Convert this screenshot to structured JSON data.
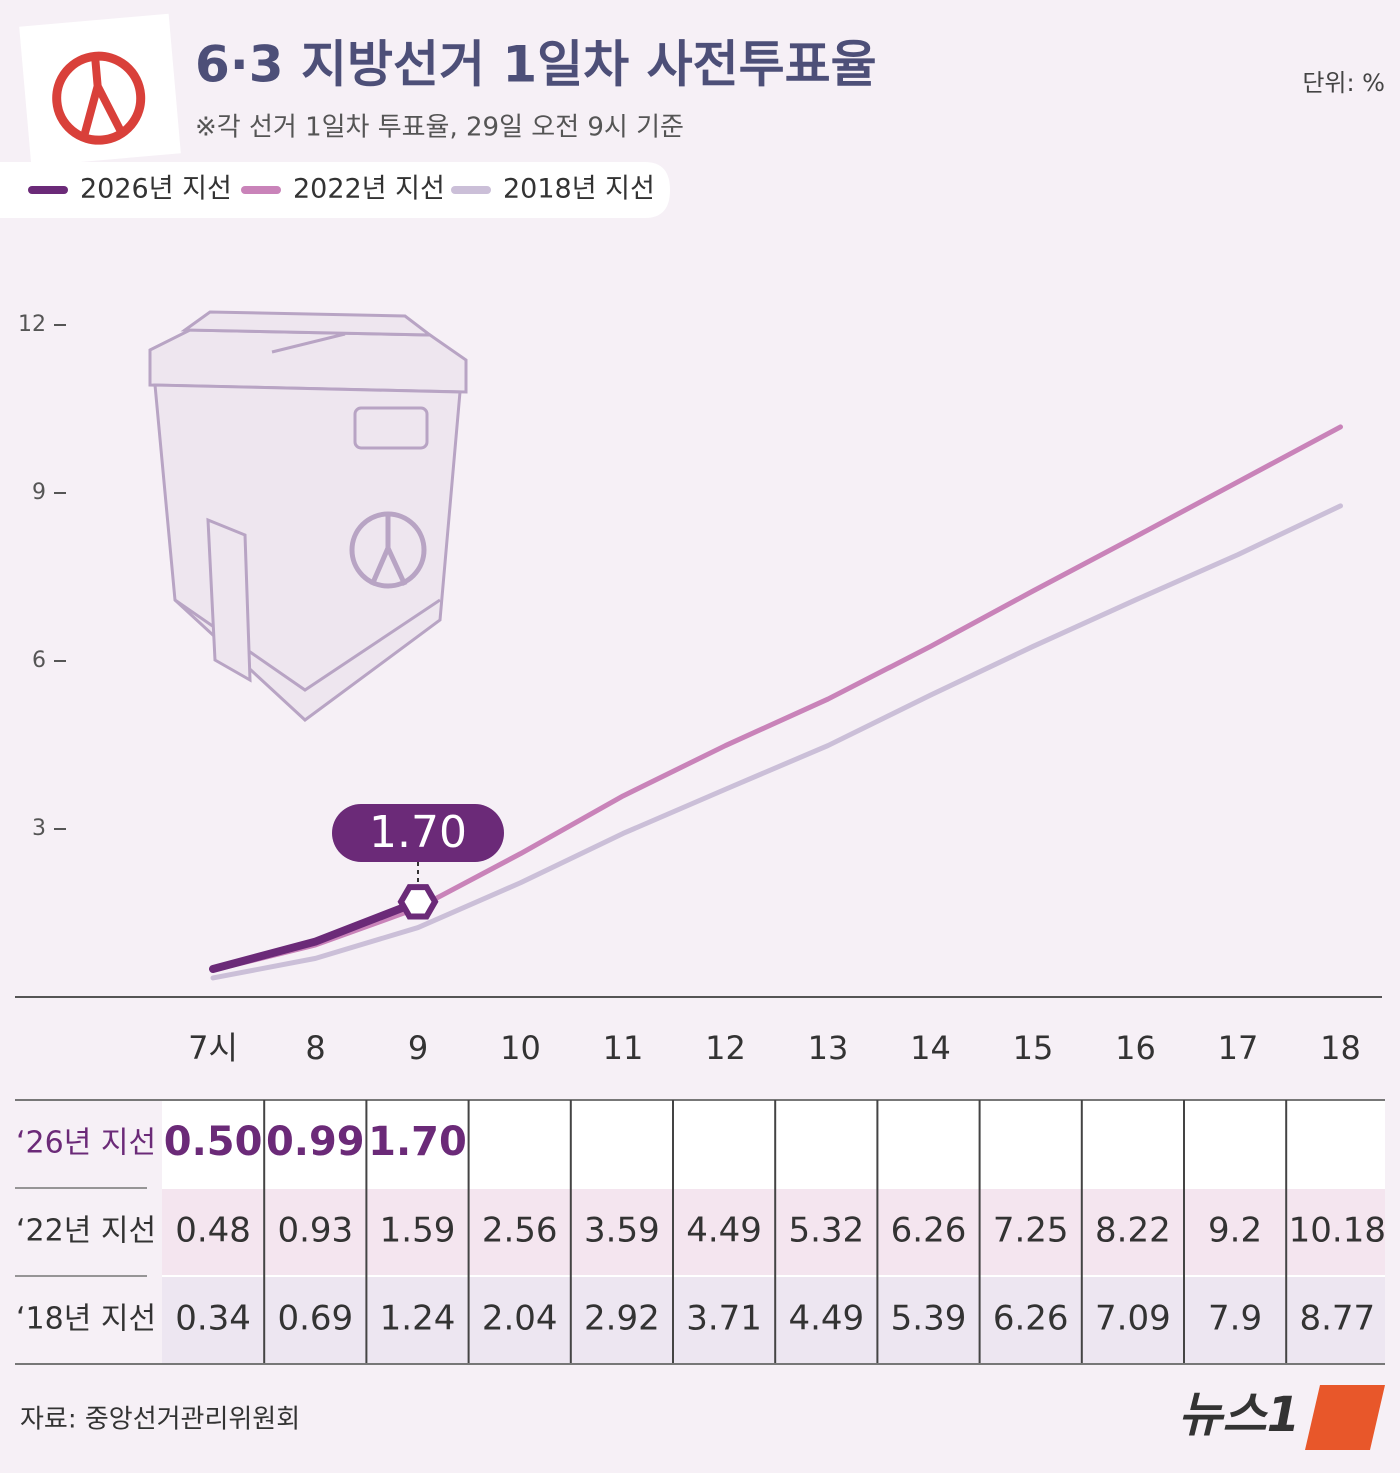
{
  "chart_data": {
    "type": "line",
    "title": "6·3 지방선거 1일차 사전투표율",
    "subtitle": "※각 선거 1일차 투표율, 29일 오전 9시 기준",
    "unit": "단위: %",
    "categories": [
      "7시",
      "8",
      "9",
      "10",
      "11",
      "12",
      "13",
      "14",
      "15",
      "16",
      "17",
      "18"
    ],
    "series": [
      {
        "name": "2026년 지선",
        "table_label": "‘26년 지선",
        "color": "#6b2a78",
        "values": [
          0.5,
          0.99,
          1.7,
          null,
          null,
          null,
          null,
          null,
          null,
          null,
          null,
          null
        ],
        "value_labels": [
          "0.50",
          "0.99",
          "1.70",
          null,
          null,
          null,
          null,
          null,
          null,
          null,
          null,
          null
        ]
      },
      {
        "name": "2022년 지선",
        "table_label": "‘22년 지선",
        "color": "#c983b9",
        "values": [
          0.48,
          0.93,
          1.59,
          2.56,
          3.59,
          4.49,
          5.32,
          6.26,
          7.25,
          8.22,
          9.2,
          10.18
        ]
      },
      {
        "name": "2018년 지선",
        "table_label": "‘18년 지선",
        "color": "#cbbfd8",
        "values": [
          0.34,
          0.69,
          1.24,
          2.04,
          2.92,
          3.71,
          4.49,
          5.39,
          6.26,
          7.09,
          7.9,
          8.77
        ]
      }
    ],
    "ylim": [
      0,
      12
    ],
    "yticks": [
      3,
      6,
      9,
      12
    ],
    "source": "자료: 중앙선거관리위원회",
    "logo": "뉴스1"
  }
}
